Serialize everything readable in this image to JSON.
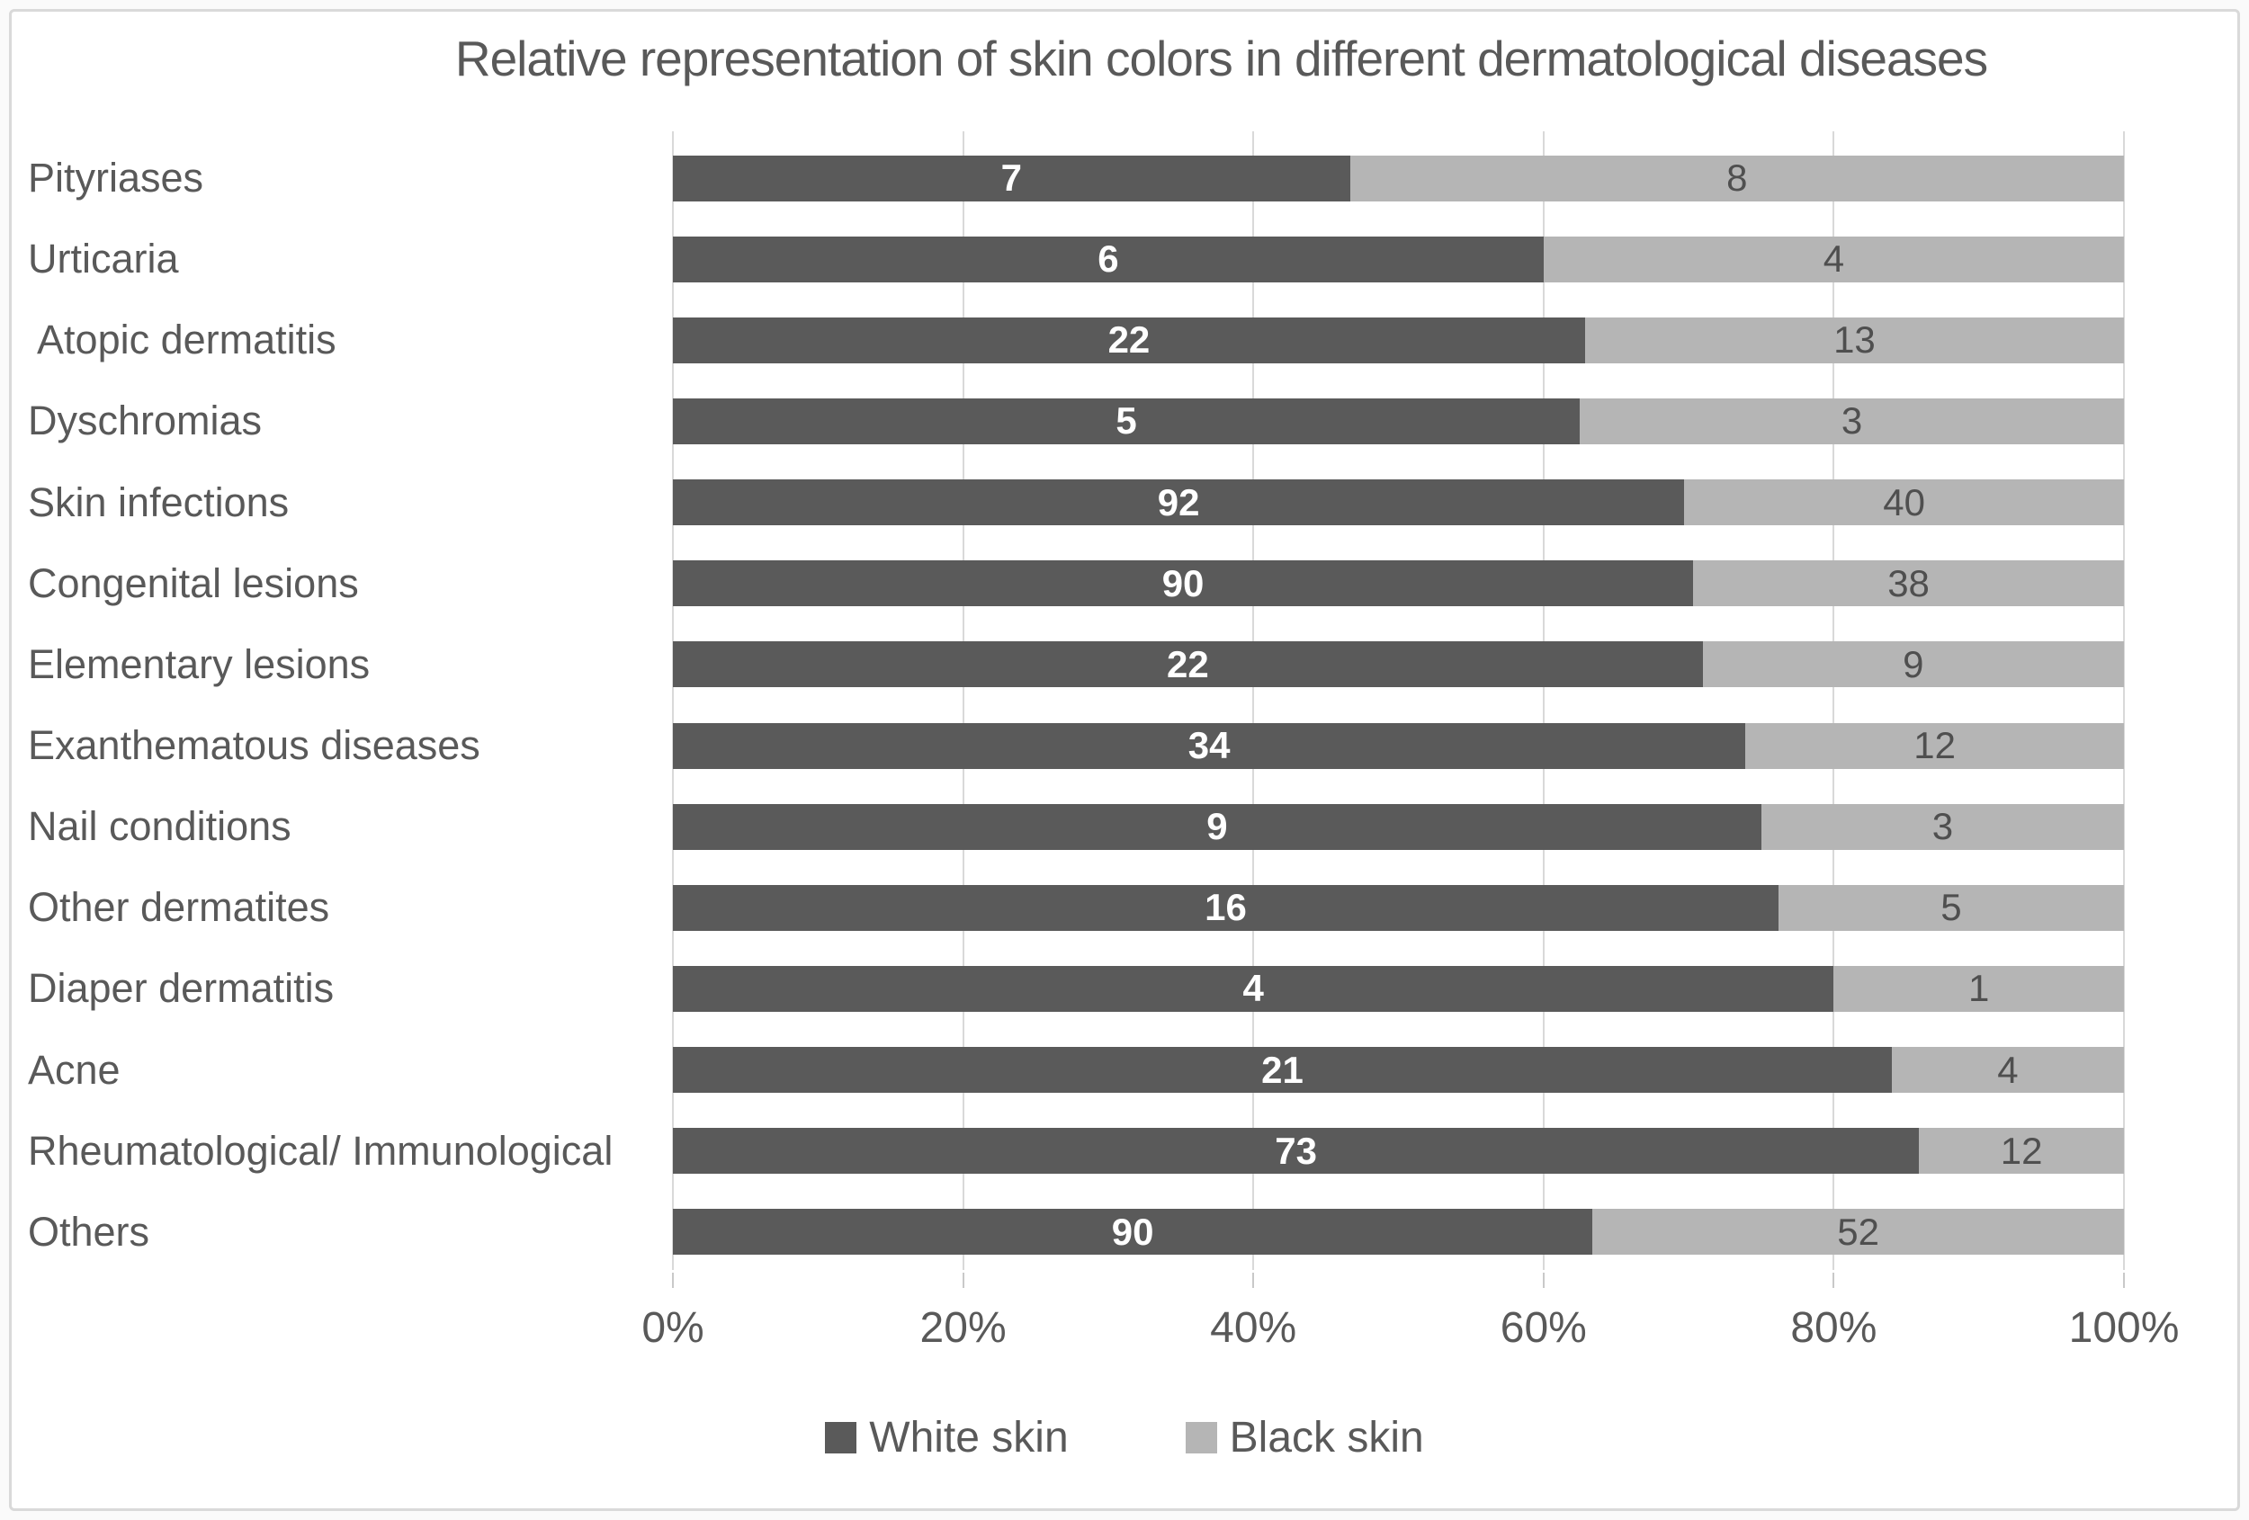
{
  "chart_data": {
    "type": "bar",
    "subtype": "horizontal-stacked-100percent",
    "title": "Relative representation of skin colors in different dermatological diseases",
    "categories": [
      "Pityriases",
      "Urticaria",
      " Atopic dermatitis",
      "Dyschromias",
      "Skin infections",
      "Congenital lesions",
      "Elementary lesions",
      "Exanthematous diseases",
      "Nail conditions",
      "Other dermatites",
      "Diaper dermatitis",
      "Acne",
      "Rheumatological/ Immunological",
      "Others"
    ],
    "series": [
      {
        "name": "White skin",
        "color": "#5a5a5a",
        "value_label_color": "#ffffff",
        "values": [
          7,
          6,
          22,
          5,
          92,
          90,
          22,
          34,
          9,
          16,
          4,
          21,
          73,
          90
        ]
      },
      {
        "name": "Black skin",
        "color": "#b5b5b5",
        "value_label_color": "#4f4f4f",
        "values": [
          8,
          4,
          13,
          3,
          40,
          38,
          9,
          12,
          3,
          5,
          1,
          4,
          12,
          52
        ]
      }
    ],
    "x_tick_labels": [
      "0%",
      "20%",
      "40%",
      "60%",
      "80%",
      "100%"
    ],
    "xlim": [
      0,
      100
    ],
    "grid": "vertical-on",
    "legend_position": "bottom",
    "bar_normalization": "each bar scaled so white+black spans 0-100%"
  },
  "colors": {
    "title_text": "#595959",
    "category_text": "#595959",
    "tick_text": "#595959",
    "gridline": "#d9d9d9",
    "figure_border": "#d9d9d9",
    "background": "#ffffff"
  }
}
